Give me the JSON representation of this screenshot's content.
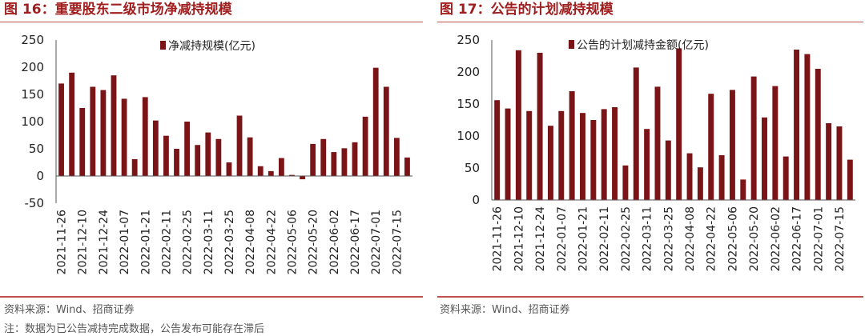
{
  "charts": [
    {
      "figure_title": "图 16：重要股东二级市场净减持规模",
      "source": "资料来源：Wind、招商证券",
      "note": "注：数据为已公告减持完成数据，公告发布可能存在滞后"
    },
    {
      "figure_title": "图 17：公告的计划减持规模",
      "source": "资料来源：Wind、招商证券"
    }
  ],
  "colors": {
    "bar": "#7b1416",
    "accent": "#a01e1e",
    "rule": "#c0504d"
  },
  "chart_data": [
    {
      "type": "bar",
      "title": "重要股东二级市场净减持规模",
      "legend": "净减持规模(亿元)",
      "legend_position": "top-center",
      "xlabel": "",
      "ylabel": "",
      "ylim": [
        -50,
        250
      ],
      "yticks": [
        -50,
        0,
        50,
        100,
        150,
        200,
        250
      ],
      "x_tick_labels": [
        "2021-11-26",
        "2021-12-10",
        "2021-12-24",
        "2022-01-07",
        "2022-01-21",
        "2022-02-11",
        "2022-02-25",
        "2022-03-11",
        "2022-03-25",
        "2022-04-08",
        "2022-04-22",
        "2022-05-06",
        "2022-05-20",
        "2022-06-02",
        "2022-06-17",
        "2022-07-01",
        "2022-07-15"
      ],
      "values": [
        170,
        190,
        125,
        164,
        158,
        185,
        142,
        31,
        145,
        102,
        74,
        50,
        100,
        57,
        80,
        68,
        25,
        111,
        71,
        18,
        9,
        33,
        2,
        -6,
        59,
        68,
        44,
        51,
        62,
        109,
        199,
        164,
        70,
        34
      ]
    },
    {
      "type": "bar",
      "title": "公告的计划减持规模",
      "legend": "公告的计划减持金额(亿元)",
      "legend_position": "top-center",
      "xlabel": "",
      "ylabel": "",
      "ylim": [
        0,
        250
      ],
      "yticks": [
        0,
        50,
        100,
        150,
        200,
        250
      ],
      "x_tick_labels": [
        "2021-11-26",
        "2021-12-10",
        "2021-12-24",
        "2022-01-07",
        "2022-01-21",
        "2022-02-11",
        "2022-02-25",
        "2022-03-11",
        "2022-03-25",
        "2022-04-08",
        "2022-04-22",
        "2022-05-06",
        "2022-05-20",
        "2022-06-02",
        "2022-06-17",
        "2022-07-01",
        "2022-07-15"
      ],
      "values": [
        156,
        143,
        234,
        139,
        230,
        116,
        139,
        170,
        136,
        125,
        142,
        145,
        54,
        207,
        111,
        177,
        93,
        237,
        73,
        51,
        166,
        70,
        172,
        32,
        193,
        129,
        178,
        68,
        235,
        228,
        205,
        120,
        115,
        63
      ]
    }
  ]
}
